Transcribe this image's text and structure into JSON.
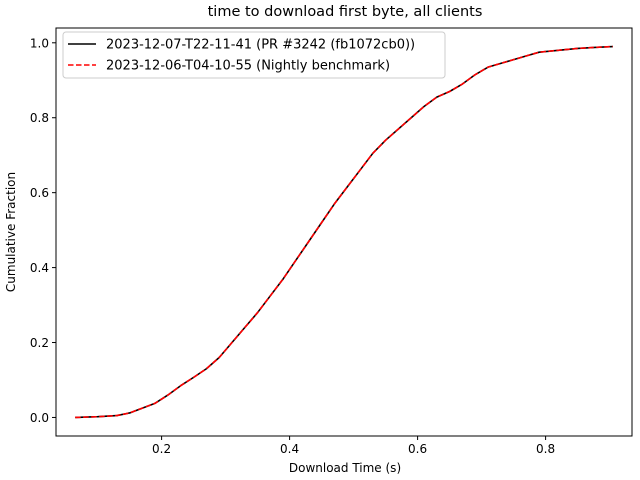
{
  "chart_data": {
    "type": "line",
    "title": "time to download first byte, all clients",
    "xlabel": "Download Time (s)",
    "ylabel": "Cumulative Fraction",
    "xlim": [
      0.035,
      0.935
    ],
    "ylim": [
      -0.0495,
      1.0395
    ],
    "xticks": [
      0.2,
      0.4,
      0.6,
      0.8
    ],
    "yticks": [
      0.0,
      0.2,
      0.4,
      0.6,
      0.8,
      1.0
    ],
    "xtick_labels": [
      "0.2",
      "0.4",
      "0.6",
      "0.8"
    ],
    "ytick_labels": [
      "0.0",
      "0.2",
      "0.4",
      "0.6",
      "0.8",
      "1.0"
    ],
    "grid": false,
    "legend_position": "top-left",
    "series": [
      {
        "name": "2023-12-07-T22-11-41 (PR #3242 (fb1072cb0))",
        "color": "#000000",
        "style": "solid",
        "x": [
          0.065,
          0.1,
          0.13,
          0.15,
          0.17,
          0.19,
          0.21,
          0.23,
          0.25,
          0.27,
          0.29,
          0.31,
          0.33,
          0.35,
          0.37,
          0.39,
          0.41,
          0.43,
          0.45,
          0.47,
          0.49,
          0.51,
          0.53,
          0.55,
          0.57,
          0.59,
          0.61,
          0.63,
          0.65,
          0.67,
          0.69,
          0.71,
          0.73,
          0.75,
          0.77,
          0.79,
          0.82,
          0.85,
          0.88,
          0.905
        ],
        "y": [
          0.0,
          0.002,
          0.005,
          0.012,
          0.025,
          0.038,
          0.06,
          0.085,
          0.107,
          0.13,
          0.16,
          0.2,
          0.24,
          0.28,
          0.325,
          0.37,
          0.42,
          0.47,
          0.52,
          0.57,
          0.615,
          0.66,
          0.705,
          0.74,
          0.77,
          0.8,
          0.83,
          0.855,
          0.87,
          0.89,
          0.915,
          0.935,
          0.945,
          0.955,
          0.965,
          0.975,
          0.98,
          0.985,
          0.988,
          0.99
        ]
      },
      {
        "name": "2023-12-06-T04-10-55 (Nightly benchmark)",
        "color": "#ff0000",
        "style": "dashed",
        "x": [
          0.065,
          0.1,
          0.13,
          0.15,
          0.17,
          0.19,
          0.21,
          0.23,
          0.25,
          0.27,
          0.29,
          0.31,
          0.33,
          0.35,
          0.37,
          0.39,
          0.41,
          0.43,
          0.45,
          0.47,
          0.49,
          0.51,
          0.53,
          0.55,
          0.57,
          0.59,
          0.61,
          0.63,
          0.65,
          0.67,
          0.69,
          0.71,
          0.73,
          0.75,
          0.77,
          0.79,
          0.82,
          0.85,
          0.88,
          0.905
        ],
        "y": [
          0.0,
          0.002,
          0.005,
          0.012,
          0.025,
          0.038,
          0.06,
          0.085,
          0.107,
          0.13,
          0.16,
          0.2,
          0.24,
          0.28,
          0.325,
          0.37,
          0.42,
          0.47,
          0.52,
          0.57,
          0.615,
          0.66,
          0.705,
          0.74,
          0.77,
          0.8,
          0.83,
          0.855,
          0.87,
          0.89,
          0.915,
          0.935,
          0.945,
          0.955,
          0.965,
          0.975,
          0.98,
          0.985,
          0.988,
          0.99
        ]
      }
    ]
  }
}
